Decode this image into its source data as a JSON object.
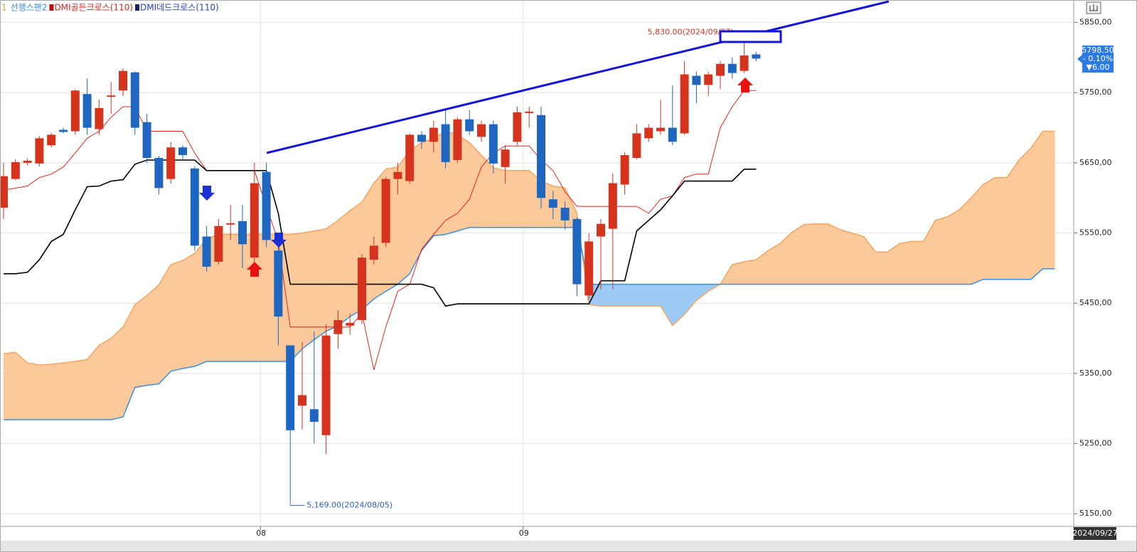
{
  "chart_data": {
    "type": "candlestick",
    "legend": [
      {
        "text": "1",
        "color": "#e8964a"
      },
      {
        "text": "선행스팬2",
        "color": "#3a8fe0"
      },
      {
        "text": "DMI골든크로스(110)",
        "color": "#d62a1a"
      },
      {
        "text": "DMI데드크로스(110)",
        "color": "#2a3fc8"
      }
    ],
    "categories": [
      null,
      null,
      null,
      null,
      null,
      null,
      null,
      null,
      null,
      null,
      null,
      null,
      null,
      null,
      null,
      null,
      null,
      null,
      null,
      null,
      null,
      null,
      "08",
      null,
      null,
      null,
      null,
      null,
      null,
      null,
      null,
      null,
      null,
      null,
      null,
      null,
      null,
      null,
      null,
      null,
      null,
      null,
      null,
      null,
      "09",
      null,
      null,
      null,
      null,
      null,
      null,
      null,
      null,
      null,
      null,
      null,
      null,
      null,
      null,
      null,
      null,
      null,
      null,
      null,
      null,
      null,
      null,
      null,
      null,
      null,
      null,
      null,
      null,
      null,
      null,
      null,
      null,
      null,
      null,
      null,
      null,
      null,
      null,
      null,
      null,
      null,
      null,
      null,
      null
    ],
    "open": [
      5586,
      5627,
      5650,
      5649,
      5675,
      5697,
      5695,
      5748,
      5698,
      5744,
      5753,
      5779,
      5708,
      5657,
      5627,
      5672,
      5642,
      5545,
      5509,
      5562,
      5567,
      5515,
      5637,
      5525,
      5390,
      5304,
      5299,
      5262,
      5406,
      5418,
      5426,
      5512,
      5536,
      5627,
      5624,
      5690,
      5680,
      5705,
      5654,
      5712,
      5687,
      5705,
      5644,
      5680,
      5721,
      5718,
      5598,
      5586,
      5570,
      5461,
      5545,
      5556,
      5619,
      5657,
      5685,
      5695,
      5700,
      5692,
      5774,
      5761,
      5774,
      5791,
      5781,
      5804.5,
      null,
      null,
      null,
      null,
      null,
      null,
      null,
      null,
      null,
      null,
      null,
      null,
      null,
      null,
      null,
      null,
      null,
      null,
      null,
      null,
      null,
      null,
      null,
      null,
      null
    ],
    "high": [
      5650,
      5655,
      5656,
      5688,
      5693,
      5700,
      5755,
      5770,
      5740,
      5765,
      5785,
      5780,
      5720,
      5660,
      5680,
      5675,
      5645,
      5560,
      5570,
      5590,
      5590,
      5650,
      5650,
      5535,
      5390,
      5395,
      5410,
      5420,
      5440,
      5435,
      5520,
      5545,
      5630,
      5650,
      5692,
      5695,
      5710,
      5725,
      5715,
      5725,
      5710,
      5710,
      5675,
      5730,
      5730,
      5730,
      5610,
      5595,
      5572,
      5550,
      5570,
      5635,
      5665,
      5705,
      5705,
      5740,
      5760,
      5795,
      5780,
      5780,
      5795,
      5800,
      5830,
      5808,
      null,
      null,
      null,
      null,
      null,
      null,
      null,
      null,
      null,
      null,
      null,
      null,
      null,
      null,
      null,
      null,
      null,
      null,
      null,
      null,
      null,
      null,
      null,
      null,
      null
    ],
    "low": [
      5570,
      5625,
      5646,
      5645,
      5672,
      5692,
      5690,
      5690,
      5690,
      5720,
      5745,
      5690,
      5650,
      5605,
      5620,
      5655,
      5525,
      5495,
      5505,
      5540,
      5500,
      5500,
      5530,
      5390,
      5169,
      5270,
      5250,
      5235,
      5385,
      5405,
      5420,
      5505,
      5530,
      5605,
      5620,
      5670,
      5665,
      5642,
      5650,
      5690,
      5680,
      5635,
      5620,
      5675,
      5700,
      5585,
      5570,
      5555,
      5460,
      5455,
      5470,
      5470,
      5605,
      5655,
      5680,
      5690,
      5675,
      5690,
      5735,
      5745,
      5755,
      5770,
      5778,
      5795,
      null,
      null,
      null,
      null,
      null,
      null,
      null,
      null,
      null,
      null,
      null,
      null,
      null,
      null,
      null,
      null,
      null,
      null,
      null,
      null,
      null,
      null,
      null,
      null,
      null
    ],
    "close": [
      5631,
      5651,
      5653,
      5685,
      5690,
      5694,
      5753,
      5700,
      5728,
      5746,
      5781,
      5700,
      5657,
      5614,
      5672,
      5661,
      5532,
      5502,
      5560,
      5564,
      5534,
      5621,
      5540,
      5431,
      5269,
      5319,
      5281,
      5404,
      5426,
      5422,
      5515,
      5532,
      5627,
      5637,
      5690,
      5680,
      5700,
      5651,
      5712,
      5695,
      5705,
      5649,
      5669,
      5722,
      5723,
      5600,
      5586,
      5568,
      5477,
      5538,
      5563,
      5621,
      5661,
      5692,
      5700,
      5700,
      5680,
      5776,
      5761,
      5776,
      5791,
      5778,
      5803,
      5798.5,
      null,
      null,
      null,
      null,
      null,
      null,
      null,
      null,
      null,
      null,
      null,
      null,
      null,
      null,
      null,
      null,
      null,
      null,
      null,
      null,
      null,
      null,
      null,
      null,
      null
    ],
    "up_color": "#d6331f",
    "down_color": "#1f66c1",
    "lines": [
      {
        "color": "#e8251a",
        "values": [
          5611,
          5614,
          5617,
          5629,
          5634,
          5644,
          5664,
          5685,
          5695,
          5715,
          5730,
          5730,
          5695,
          5695,
          5695,
          5695,
          5664,
          5639,
          5639,
          5639,
          5639,
          5639,
          5588,
          5538,
          5416,
          5416,
          5416,
          5416,
          5416,
          5416,
          5436,
          5355,
          5416,
          5467,
          5477,
          5527,
          5548,
          5568,
          5578,
          5598,
          5644,
          5664,
          5674,
          5674,
          5674,
          5654,
          5639,
          5609,
          5588,
          5588,
          5588,
          5588,
          5588,
          5588,
          5578,
          5598,
          5603,
          5629,
          5634,
          5634,
          5700,
          5730,
          5753,
          5753,
          null,
          null,
          null,
          null,
          null,
          null,
          null,
          null,
          null,
          null,
          null,
          null,
          null,
          null,
          null,
          null,
          null,
          null,
          null,
          null,
          null,
          null,
          null,
          null,
          null
        ]
      },
      {
        "color": "#000000",
        "values": [
          5492,
          5492,
          5494,
          5512,
          5538,
          5548,
          5583,
          5616,
          5617,
          5624,
          5626,
          5648,
          5654,
          5654,
          5654,
          5654,
          5654,
          5639,
          5639,
          5639,
          5639,
          5639,
          5639,
          5578,
          5477,
          5477,
          5477,
          5477,
          5477,
          5477,
          5477,
          5477,
          5477,
          5477,
          5477,
          5477,
          5472,
          5446,
          5449,
          5449,
          5449,
          5449,
          5449,
          5449,
          5449,
          5449,
          5449,
          5449,
          5449,
          5449,
          5482,
          5482,
          5482,
          5553,
          5568,
          5583,
          5603,
          5624,
          5624,
          5624,
          5624,
          5624,
          5641,
          5641,
          null,
          null,
          null,
          null,
          null,
          null,
          null,
          null,
          null,
          null,
          null,
          null,
          null,
          null,
          null,
          null,
          null,
          null,
          null,
          null,
          null,
          null,
          null,
          null,
          null
        ]
      }
    ],
    "span1": {
      "color": "#f5a560",
      "values": [
        5378,
        5380,
        5365,
        5362,
        5363,
        5365,
        5367,
        5370,
        5390,
        5400,
        5416,
        5448,
        5461,
        5476,
        5505,
        5511,
        5521,
        5542,
        5548,
        5548,
        5548,
        5548,
        5548,
        5548,
        5548,
        5550,
        5553,
        5556,
        5568,
        5582,
        5594,
        5621,
        5641,
        5644,
        5667,
        5679,
        5685,
        5695,
        5690,
        5679,
        5661,
        5643,
        5639,
        5639,
        5639,
        5624,
        5617,
        5614,
        5578,
        5448,
        5446,
        5446,
        5446,
        5446,
        5446,
        5446,
        5418,
        5434,
        5454,
        5467,
        5477,
        5505,
        5509,
        5512,
        5525,
        5535,
        5551,
        5562,
        5563,
        5563,
        5555,
        5550,
        5545,
        5523,
        5523,
        5535,
        5538,
        5538,
        5568,
        5573,
        5583,
        5600,
        5619,
        5629,
        5629,
        5654,
        5671,
        5695,
        5695
      ]
    },
    "span2": {
      "color": "#3a8fe0",
      "values": [
        5284,
        5284,
        5284,
        5284,
        5284,
        5284,
        5284,
        5284,
        5284,
        5284,
        5288,
        5330,
        5333,
        5335,
        5353,
        5357,
        5360,
        5367,
        5367,
        5367,
        5367,
        5367,
        5367,
        5367,
        5367,
        5385,
        5398,
        5410,
        5418,
        5431,
        5441,
        5456,
        5467,
        5477,
        5492,
        5525,
        5546,
        5548,
        5553,
        5558,
        5558,
        5558,
        5558,
        5558,
        5558,
        5558,
        5558,
        5558,
        5558,
        5477,
        5477,
        5477,
        5477,
        5477,
        5477,
        5477,
        5477,
        5477,
        5477,
        5477,
        5477,
        5477,
        5477,
        5477,
        5477,
        5477,
        5477,
        5477,
        5477,
        5477,
        5477,
        5477,
        5477,
        5477,
        5477,
        5477,
        5477,
        5477,
        5477,
        5477,
        5477,
        5477,
        5484,
        5484,
        5484,
        5484,
        5484,
        5499,
        5499
      ]
    },
    "cloud_up_color": "#fbc99a",
    "cloud_down_color": "#9ccbf6",
    "ylim": [
      5132,
      5882
    ],
    "yticks": [
      {
        "value": 5850,
        "label": "5850,00"
      },
      {
        "value": 5750,
        "label": "5750,00"
      },
      {
        "value": 5650,
        "label": "5650,00"
      },
      {
        "value": 5550,
        "label": "5550,00"
      },
      {
        "value": 5450,
        "label": "5450,00"
      },
      {
        "value": 5350,
        "label": "5350,00"
      },
      {
        "value": 5250,
        "label": "5250,00"
      },
      {
        "value": 5150,
        "label": "5150,00"
      }
    ],
    "grid": true,
    "high_note": "5,830.00(2024/09/27)",
    "low_note": "5,169.00(2024/08/05)",
    "price_tag": [
      "5798.50",
      "- 0.10%",
      "▼6.00"
    ],
    "cursor_date": "2024/09/27"
  }
}
